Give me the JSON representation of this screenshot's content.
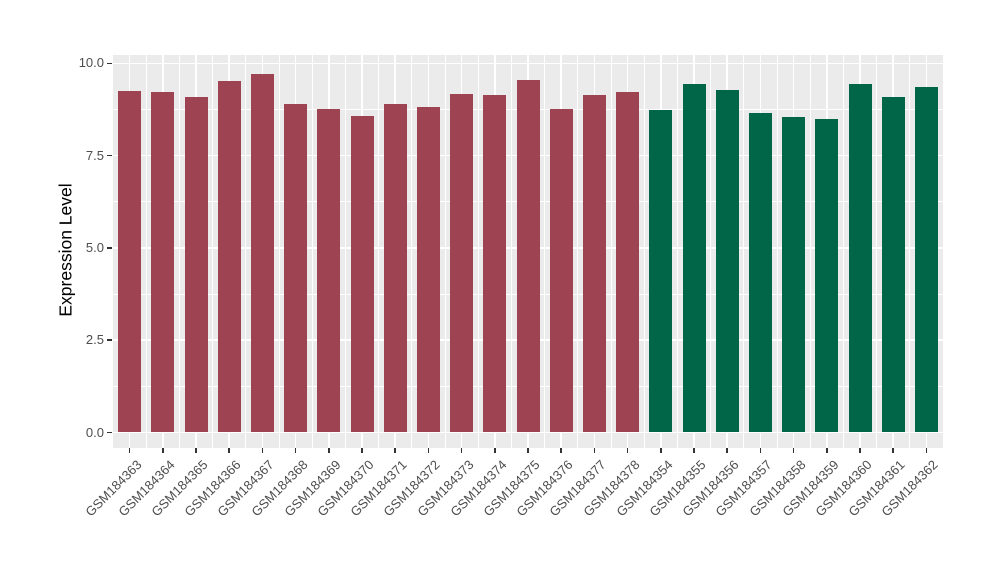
{
  "chart_data": {
    "type": "bar",
    "title": "",
    "xlabel": "",
    "ylabel": "Expression Level",
    "ylim": [
      -0.42,
      10.21
    ],
    "y_major_ticks": [
      0.0,
      2.5,
      5.0,
      7.5,
      10.0
    ],
    "y_tick_labels": [
      "0.0",
      "2.5",
      "5.0",
      "7.5",
      "10.0"
    ],
    "y_minor_ticks": [
      1.25,
      3.75,
      6.25,
      8.75
    ],
    "grid": true,
    "legend_position": "none",
    "categories": [
      "GSM184363",
      "GSM184364",
      "GSM184365",
      "GSM184366",
      "GSM184367",
      "GSM184368",
      "GSM184369",
      "GSM184370",
      "GSM184371",
      "GSM184372",
      "GSM184373",
      "GSM184374",
      "GSM184375",
      "GSM184376",
      "GSM184377",
      "GSM184378",
      "GSM184354",
      "GSM184355",
      "GSM184356",
      "GSM184357",
      "GSM184358",
      "GSM184359",
      "GSM184360",
      "GSM184361",
      "GSM184362"
    ],
    "values": [
      9.24,
      9.22,
      9.1,
      9.52,
      9.7,
      8.89,
      8.76,
      8.57,
      8.89,
      8.82,
      9.16,
      9.13,
      9.55,
      8.75,
      9.14,
      9.22,
      8.74,
      9.45,
      9.28,
      8.65,
      8.55,
      8.49,
      9.43,
      9.1,
      9.37
    ],
    "color_groups": [
      {
        "color": "#9E4351",
        "from_index": 0,
        "to_index": 15
      },
      {
        "color": "#006647",
        "from_index": 16,
        "to_index": 24
      }
    ]
  },
  "theme": {
    "panel_bg": "#EBEBEB",
    "grid_color": "#FFFFFF",
    "tick_color": "#333333",
    "axis_text_color": "#4D4D4D",
    "axis_title_color": "#000000",
    "background": "#FFFFFF"
  }
}
